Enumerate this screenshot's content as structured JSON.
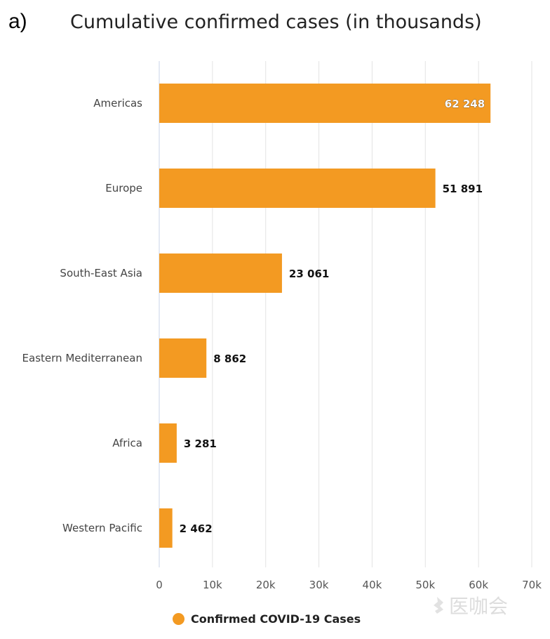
{
  "panel_label": "a)",
  "chart_data": {
    "type": "bar",
    "orientation": "horizontal",
    "title": "Cumulative confirmed cases (in thousands)",
    "categories": [
      "Americas",
      "Europe",
      "South-East Asia",
      "Eastern Mediterranean",
      "Africa",
      "Western Pacific"
    ],
    "series": [
      {
        "name": "Confirmed COVID-19 Cases",
        "values": [
          62248,
          51891,
          23061,
          8862,
          3281,
          2462
        ],
        "labels": [
          "62 248",
          "51 891",
          "23 061",
          "8 862",
          "3 281",
          "2 462"
        ]
      }
    ],
    "xlim": [
      0,
      70000
    ],
    "xticks": [
      0,
      10000,
      20000,
      30000,
      40000,
      50000,
      60000,
      70000
    ],
    "xtick_labels": [
      "0",
      "10k",
      "20k",
      "30k",
      "40k",
      "50k",
      "60k",
      "70k"
    ],
    "grid": "vertical",
    "legend_position": "bottom-center",
    "bar_color": "#f39a22"
  },
  "watermark": "医咖会"
}
